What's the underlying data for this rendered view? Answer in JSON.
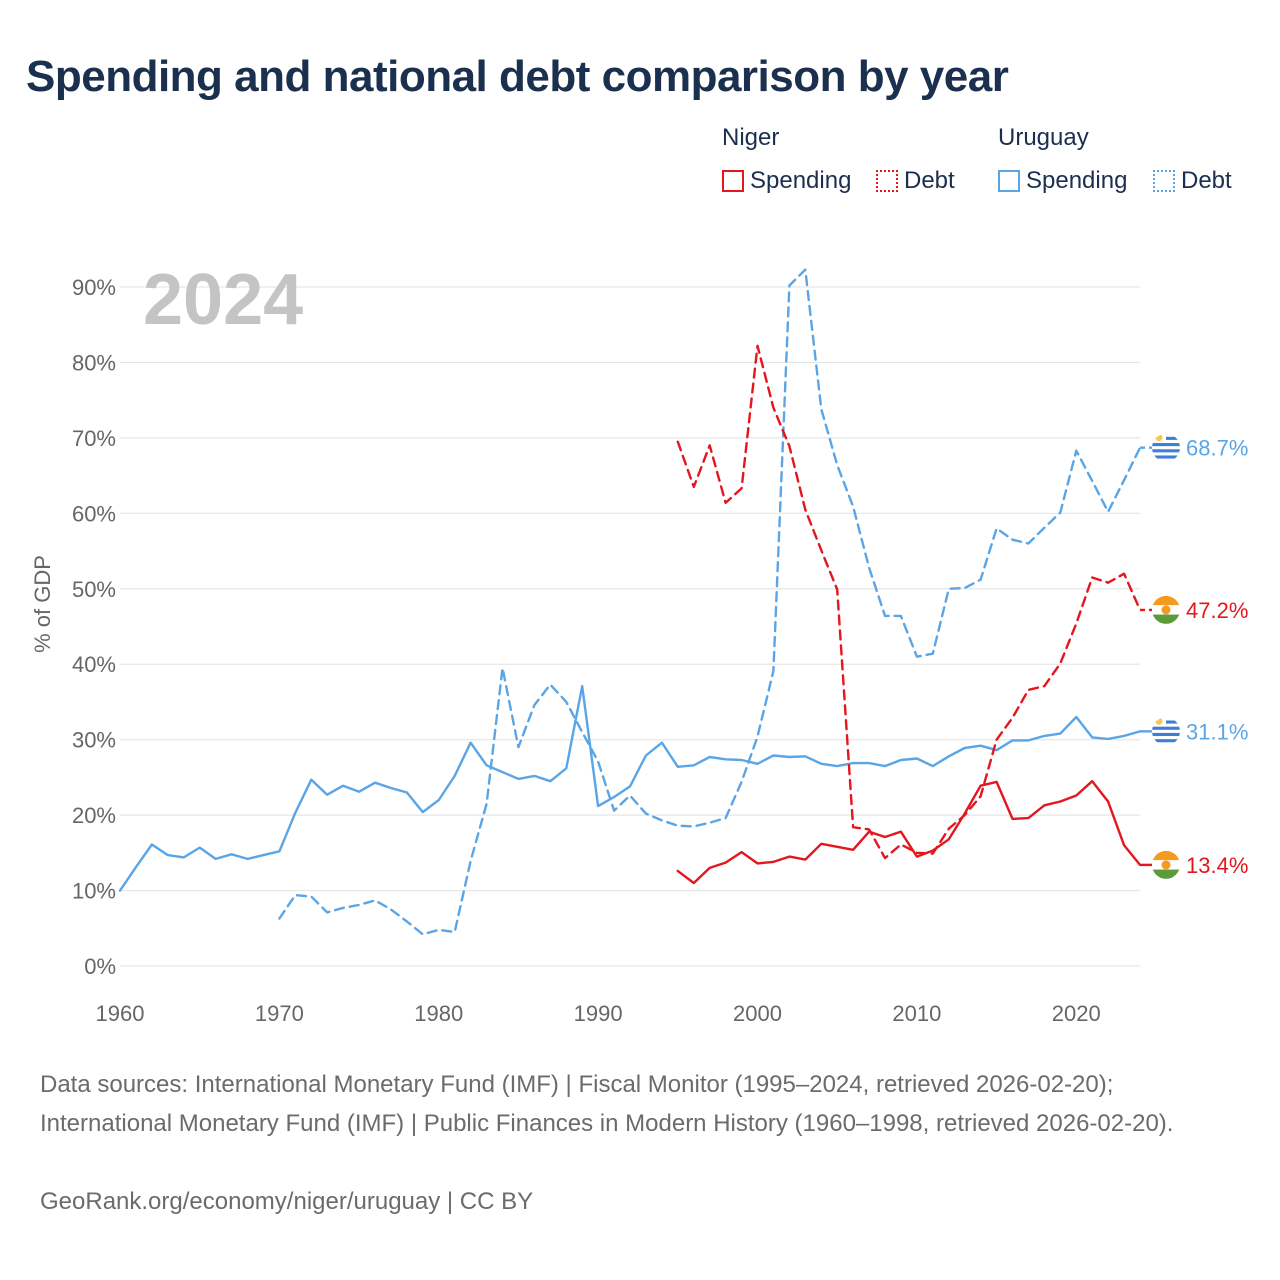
{
  "title": "Spending and national debt comparison by year",
  "legend": {
    "niger": {
      "group": "Niger",
      "spending": "Spending",
      "debt": "Debt"
    },
    "uruguay": {
      "group": "Uruguay",
      "spending": "Spending",
      "debt": "Debt"
    }
  },
  "colors": {
    "niger": "#e4161e",
    "uruguay": "#5aa5e6",
    "year": "#c4c4c4",
    "grid": "#e6e6e6",
    "axis_text": "#666666"
  },
  "footer": {
    "sources": "Data sources: International Monetary Fund (IMF) | Fiscal Monitor (1995–2024, retrieved 2026-02-20); International Monetary Fund (IMF) | Public Finances in Modern History (1960–1998, retrieved 2026-02-20).",
    "credit": "GeoRank.org/economy/niger/uruguay | CC BY"
  },
  "chart_data": {
    "type": "line",
    "year_label": "2024",
    "ylabel": "% of GDP",
    "xlim": [
      1960,
      2024
    ],
    "ylim": [
      0,
      90
    ],
    "xticks": [
      1960,
      1970,
      1980,
      1990,
      2000,
      2010,
      2020
    ],
    "yticks": [
      0,
      10,
      20,
      30,
      40,
      50,
      60,
      70,
      80,
      90
    ],
    "tick_format": "{v}%",
    "series": [
      {
        "name": "Uruguay Spending",
        "country": "uruguay",
        "style": "solid",
        "end_label": "31.1%",
        "start": 1960,
        "values": [
          10.0,
          13.1,
          16.1,
          14.7,
          14.4,
          15.7,
          14.2,
          14.8,
          14.2,
          14.7,
          15.2,
          20.3,
          24.7,
          22.7,
          23.9,
          23.1,
          24.3,
          23.6,
          23.0,
          20.4,
          22.0,
          25.2,
          29.6,
          26.6,
          25.7,
          24.8,
          25.2,
          24.5,
          26.2,
          37.1,
          21.2,
          22.4,
          23.8,
          27.9,
          29.6,
          26.4,
          26.6,
          27.7,
          27.4,
          27.3,
          26.8,
          27.9,
          27.7,
          27.8,
          26.8,
          26.5,
          26.9,
          26.9,
          26.5,
          27.3,
          27.5,
          26.5,
          27.8,
          28.9,
          29.2,
          28.6,
          29.9,
          29.9,
          30.5,
          30.8,
          33.0,
          30.3,
          30.1,
          30.5,
          31.1
        ]
      },
      {
        "name": "Uruguay Debt",
        "country": "uruguay",
        "style": "dashed",
        "end_label": "68.7%",
        "start": 1970,
        "values": [
          6.3,
          9.4,
          9.2,
          7.1,
          7.7,
          8.1,
          8.7,
          7.5,
          5.9,
          4.2,
          4.8,
          4.5,
          13.9,
          21.5,
          39.5,
          29.0,
          34.6,
          37.3,
          35.0,
          31.0,
          27.1,
          20.6,
          22.6,
          20.2,
          19.3,
          18.6,
          18.5,
          19.0,
          19.6,
          24.4,
          30.4,
          39.1,
          90.2,
          92.3,
          73.8,
          66.4,
          60.9,
          52.8,
          46.4,
          46.4,
          41.0,
          41.4,
          50.0,
          50.1,
          51.2,
          58.0,
          56.5,
          56.0,
          58.1,
          60.1,
          68.3,
          64.3,
          60.2,
          64.4,
          68.7
        ]
      },
      {
        "name": "Niger Spending",
        "country": "niger",
        "style": "solid",
        "end_label": "13.4%",
        "start": 1995,
        "values": [
          12.6,
          11.0,
          13.0,
          13.7,
          15.1,
          13.6,
          13.8,
          14.5,
          14.1,
          16.2,
          15.8,
          15.4,
          17.8,
          17.1,
          17.8,
          14.5,
          15.3,
          16.8,
          20.2,
          23.9,
          24.4,
          19.5,
          19.6,
          21.3,
          21.8,
          22.6,
          24.5,
          21.8,
          16.0,
          13.4
        ]
      },
      {
        "name": "Niger Debt",
        "country": "niger",
        "style": "dashed",
        "end_label": "47.2%",
        "start": 1995,
        "values": [
          69.5,
          63.5,
          69.0,
          61.4,
          63.3,
          82.2,
          74.0,
          68.9,
          60.5,
          55.1,
          49.9,
          18.4,
          18.1,
          14.3,
          16.1,
          15.0,
          14.9,
          18.2,
          20.0,
          22.5,
          30.0,
          32.9,
          36.6,
          37.1,
          40.1,
          45.4,
          51.5,
          50.8,
          52.0,
          47.2
        ]
      }
    ]
  }
}
